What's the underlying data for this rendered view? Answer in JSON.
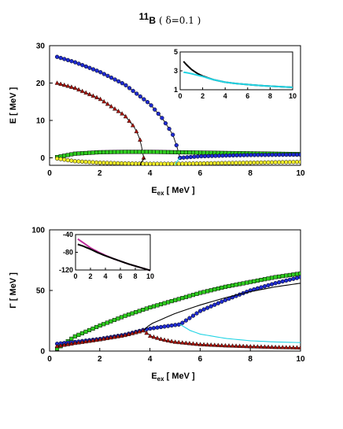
{
  "figure": {
    "title": {
      "super": "11",
      "nucleus": "B",
      "param": "( δ=0.1 )"
    }
  },
  "colors": {
    "green": "#2ecc1f",
    "blue": "#1f2bd0",
    "red": "#a8140c",
    "yellow": "#f2ee2a",
    "cyan": "#22d4e4",
    "black": "#000000",
    "magenta": "#c0309e"
  },
  "chart_data": [
    {
      "id": "energy",
      "type": "scatter",
      "xlabel": {
        "main": "E",
        "sub": "ex",
        "unit": " [ MeV ]"
      },
      "ylabel": "E [ MeV ]",
      "xlim": [
        0,
        10
      ],
      "ylim": [
        -2,
        30
      ],
      "xticks": [
        "0",
        "2",
        "4",
        "6",
        "8",
        "10"
      ],
      "yticks": [
        "0",
        "10",
        "20",
        "30"
      ],
      "series": [
        {
          "color": "blue",
          "marker": "circle",
          "x": [
            0.3,
            1,
            2,
            3,
            4,
            4.5,
            4.9,
            5.1,
            5.2
          ],
          "y": [
            27,
            25.6,
            23,
            19.6,
            14.4,
            10.5,
            6.4,
            2.5,
            0
          ]
        },
        {
          "color": "red",
          "marker": "triangle",
          "x": [
            0.3,
            1,
            2,
            3,
            3.4,
            3.6,
            3.7,
            3.75
          ],
          "y": [
            20,
            18.7,
            15.8,
            11.3,
            8,
            5,
            2,
            0
          ]
        },
        {
          "color": "green",
          "marker": "square",
          "x": [
            0.3,
            1,
            2,
            3,
            4,
            5,
            6,
            7,
            8,
            9,
            10
          ],
          "y": [
            0.2,
            1.1,
            1.5,
            1.6,
            1.6,
            1.5,
            1.4,
            1.3,
            1.2,
            1.1,
            1.0
          ]
        },
        {
          "color": "blue",
          "marker": "circle",
          "x": [
            5.2,
            6,
            7,
            8,
            9,
            10
          ],
          "y": [
            0,
            0.4,
            0.6,
            0.75,
            0.8,
            0.85
          ]
        },
        {
          "color": "yellow",
          "marker": "circle",
          "x": [
            0.3,
            1,
            2,
            3,
            4,
            5,
            6,
            7,
            8,
            9,
            10
          ],
          "y": [
            -0.2,
            -0.9,
            -1.3,
            -1.5,
            -1.6,
            -1.6,
            -1.5,
            -1.4,
            -1.3,
            -1.2,
            -1.1
          ]
        },
        {
          "color": "black",
          "marker": "none",
          "x": [
            3.6,
            3.65,
            3.75,
            3.8
          ],
          "y": [
            -2,
            -1.2,
            -0.4,
            0
          ]
        },
        {
          "color": "cyan",
          "marker": "none",
          "x": [
            5.0,
            5.05,
            5.15,
            5.2
          ],
          "y": [
            -2,
            -1.2,
            -0.4,
            0
          ]
        }
      ],
      "inset": {
        "xlim": [
          0,
          10
        ],
        "ylim": [
          1,
          5
        ],
        "xticks": [
          "0",
          "2",
          "4",
          "6",
          "8",
          "10"
        ],
        "yticks": [
          "1",
          "3",
          "5"
        ],
        "series": [
          {
            "color": "black",
            "x": [
              0.3,
              0.6,
              1,
              1.5,
              2,
              3,
              4,
              5,
              6,
              7,
              8,
              9,
              10
            ],
            "y": [
              4.0,
              3.6,
              3.15,
              2.75,
              2.45,
              2.05,
              1.8,
              1.65,
              1.55,
              1.45,
              1.38,
              1.32,
              1.25
            ]
          },
          {
            "color": "cyan",
            "x": [
              0.3,
              0.6,
              1,
              1.5,
              2,
              3,
              4,
              5,
              6,
              7,
              8,
              9,
              10
            ],
            "y": [
              2.85,
              2.8,
              2.7,
              2.55,
              2.4,
              2.05,
              1.8,
              1.65,
              1.55,
              1.45,
              1.38,
              1.32,
              1.25
            ]
          }
        ]
      }
    },
    {
      "id": "width",
      "type": "scatter",
      "xlabel": {
        "main": "E",
        "sub": "ex",
        "unit": " [ MeV ]"
      },
      "ylabel": "Γ [ MeV ]",
      "xlim": [
        0,
        10
      ],
      "ylim": [
        0,
        100
      ],
      "xticks": [
        "0",
        "2",
        "4",
        "6",
        "8",
        "10"
      ],
      "yticks": [
        "0",
        "50",
        "100"
      ],
      "series": [
        {
          "color": "green",
          "marker": "square",
          "x": [
            0.3,
            1,
            2,
            3,
            4,
            5,
            6,
            7,
            8,
            9,
            10
          ],
          "y": [
            2,
            12,
            21,
            29,
            36,
            42,
            48,
            53,
            57,
            61,
            64
          ]
        },
        {
          "color": "blue",
          "marker": "circle",
          "x": [
            0.3,
            1,
            2,
            3,
            3.75,
            4,
            4.5,
            5,
            5.2,
            6,
            7,
            8,
            9,
            10
          ],
          "y": [
            6,
            7.5,
            10,
            13.5,
            17.5,
            18.5,
            20,
            21.5,
            22,
            33,
            42,
            50,
            56,
            61
          ]
        },
        {
          "color": "red",
          "marker": "triangle",
          "x": [
            0.3,
            1,
            2,
            3,
            3.75,
            4,
            4.5,
            5,
            6,
            7,
            8,
            9,
            10
          ],
          "y": [
            4,
            6.5,
            9.5,
            13,
            17,
            12.5,
            9.5,
            7.5,
            5.5,
            4.5,
            3.8,
            3.2,
            2.8
          ]
        },
        {
          "color": "black",
          "marker": "none",
          "x": [
            3.75,
            4,
            5,
            6,
            7,
            8,
            9,
            10
          ],
          "y": [
            17,
            22,
            31,
            38,
            44,
            49,
            53,
            56
          ]
        },
        {
          "color": "cyan",
          "marker": "none",
          "x": [
            5.2,
            5.6,
            6,
            7,
            8,
            9,
            10
          ],
          "y": [
            22,
            17,
            14,
            10.5,
            8.5,
            7.5,
            7
          ]
        }
      ],
      "inset": {
        "xlim": [
          0,
          10
        ],
        "ylim": [
          -120,
          -40
        ],
        "xticks": [
          "0",
          "2",
          "4",
          "6",
          "8",
          "10"
        ],
        "yticks": [
          "-40",
          "-80",
          "-120"
        ],
        "series": [
          {
            "color": "magenta",
            "x": [
              0.3,
              1,
              2,
              3,
              4,
              5,
              6,
              7,
              8,
              9,
              10
            ],
            "y": [
              -50,
              -58,
              -70,
              -79,
              -87,
              -94,
              -100,
              -106,
              -111,
              -116,
              -121
            ]
          },
          {
            "color": "black",
            "x": [
              0.3,
              1,
              2,
              3,
              4,
              5,
              6,
              7,
              8,
              9,
              10
            ],
            "y": [
              -62,
              -66,
              -73,
              -81,
              -88,
              -94,
              -100,
              -106,
              -111,
              -116,
              -121
            ]
          }
        ]
      }
    }
  ]
}
